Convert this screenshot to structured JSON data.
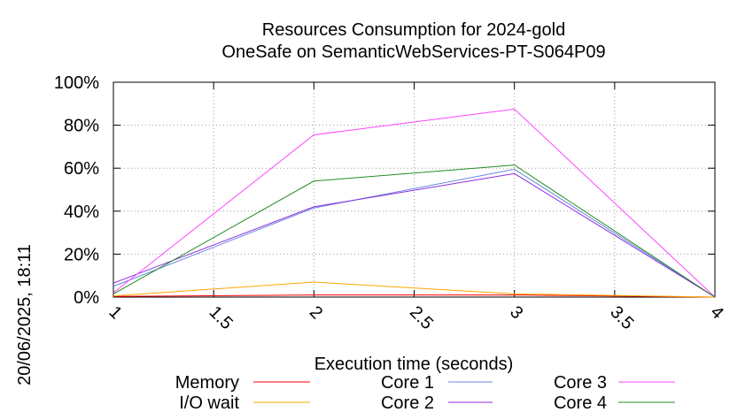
{
  "timestamp": "20/06/2025, 18:11",
  "chart_data": {
    "type": "line",
    "title": "Resources Consumption for 2024-gold",
    "subtitle": "OneSafe on SemanticWebServices-PT-S064P09",
    "xlabel": "Execution time (seconds)",
    "ylabel": "",
    "xlim": [
      1,
      4
    ],
    "ylim": [
      0,
      100
    ],
    "x_ticks": [
      "1",
      "1.5",
      "2",
      "2.5",
      "3",
      "3.5",
      "4"
    ],
    "y_ticks": [
      "0%",
      "20%",
      "40%",
      "60%",
      "80%",
      "100%"
    ],
    "grid": true,
    "legend_position": "bottom",
    "x": [
      1,
      2,
      3,
      4
    ],
    "series": [
      {
        "name": "Memory",
        "color": "#ff0000",
        "values": [
          0.3,
          1.0,
          1.0,
          0.0
        ]
      },
      {
        "name": "I/O wait",
        "color": "#ffa500",
        "values": [
          0.5,
          7.0,
          1.5,
          0.0
        ]
      },
      {
        "name": "Core 1",
        "color": "#6688dd",
        "values": [
          5.0,
          41.5,
          59.5,
          0.0
        ]
      },
      {
        "name": "Core 2",
        "color": "#8a2be2",
        "values": [
          6.5,
          42.0,
          57.5,
          0.0
        ]
      },
      {
        "name": "Core 3",
        "color": "#ff44ff",
        "values": [
          2.0,
          75.5,
          87.5,
          0.0
        ]
      },
      {
        "name": "Core 4",
        "color": "#228b22",
        "values": [
          1.5,
          54.0,
          61.5,
          0.0
        ]
      }
    ]
  }
}
